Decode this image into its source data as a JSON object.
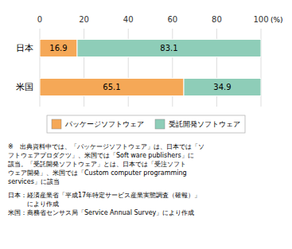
{
  "chart_data": {
    "type": "bar",
    "orientation": "horizontal",
    "stacked": true,
    "categories": [
      "米国",
      "日本"
    ],
    "series": [
      {
        "name": "パッケージソフトウェア",
        "color": "#F5A857",
        "values": [
          65.1,
          16.9
        ]
      },
      {
        "name": "受託開発ソフトウェア",
        "color": "#8ECDB8",
        "values": [
          34.9,
          83.1
        ]
      }
    ],
    "xlabel": "(%)",
    "xlim": [
      0,
      100
    ],
    "xticks": [
      0,
      20,
      40,
      60,
      80,
      100
    ],
    "grid": true,
    "data_labels": true,
    "legend": "bottom",
    "annotations": [
      "※　出典資料中では、「パッケージソフトウェア」は、日本では「ソ\nフトウェアプロダクツ」、米国では「Soft ware publishers」に\n該当。「受託開発ソフトウェア」とは、日本では「受注ソフト\nウェア開発」、米国では「Custom computer programming\nservices」に該当",
      "日本：経済産業省「平成17年特定サービス産業実態調査（確報）」\n　　　により作成\n米国：商務省センサス局「Service Annual Survey」により作成"
    ]
  }
}
